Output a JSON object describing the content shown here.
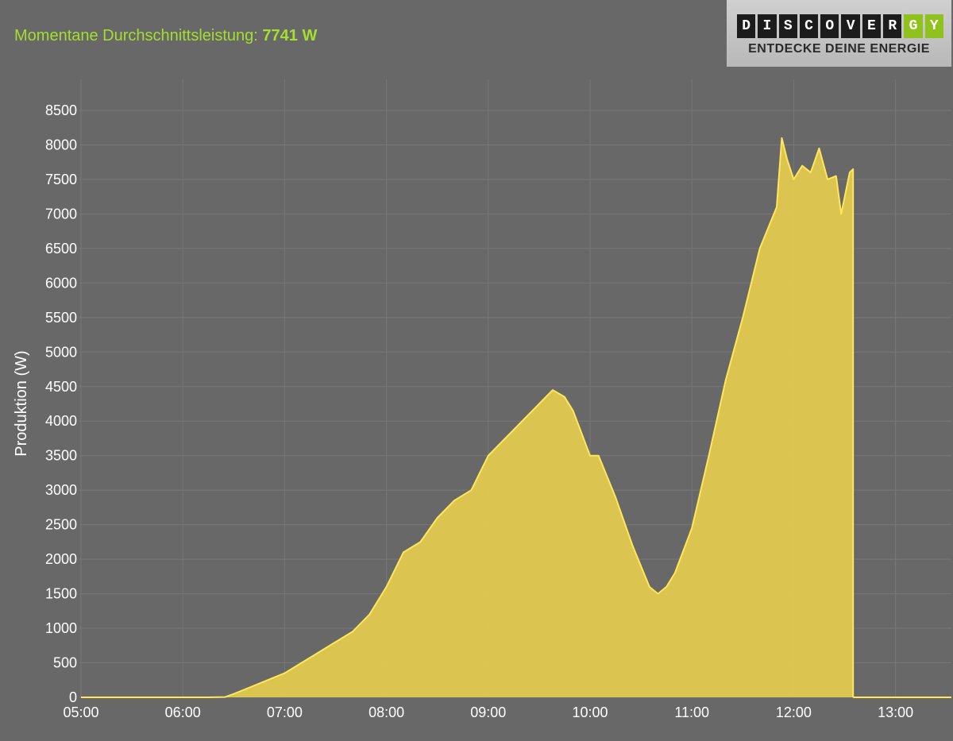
{
  "header": {
    "label": "Momentane Durchschnittsleistung:",
    "value": "7741 W"
  },
  "logo": {
    "letters": [
      "D",
      "I",
      "S",
      "C",
      "O",
      "V",
      "E",
      "R",
      "G",
      "Y"
    ],
    "tagline": "ENTDECKE DEINE ENERGIE",
    "accent_color": "#8fc21d"
  },
  "colors": {
    "background": "#686868",
    "area_fill": "#e2c94f",
    "area_line": "#ffe75a",
    "grid": "#777777",
    "headline": "#a4de2e"
  },
  "chart_data": {
    "type": "area",
    "ylabel": "Produktion (W)",
    "xlabel": "",
    "x_ticks": [
      "05:00",
      "06:00",
      "07:00",
      "08:00",
      "09:00",
      "10:00",
      "11:00",
      "12:00",
      "13:00"
    ],
    "y_ticks": [
      0,
      500,
      1000,
      1500,
      2000,
      2500,
      3000,
      3500,
      4000,
      4500,
      5000,
      5500,
      6000,
      6500,
      7000,
      7500,
      8000,
      8500
    ],
    "ylim": [
      0,
      8500
    ],
    "grid": true,
    "series": [
      {
        "x": [
          "05:00",
          "06:00",
          "06:15",
          "06:25",
          "06:30",
          "06:40",
          "06:50",
          "07:00",
          "07:10",
          "07:20",
          "07:30",
          "07:40",
          "07:50",
          "08:00",
          "08:10",
          "08:20",
          "08:30",
          "08:40",
          "08:50",
          "09:00",
          "09:10",
          "09:20",
          "09:30",
          "09:38",
          "09:45",
          "09:50",
          "10:00",
          "10:05",
          "10:15",
          "10:25",
          "10:35",
          "10:40",
          "10:45",
          "10:50",
          "11:00",
          "11:10",
          "11:20",
          "11:30",
          "11:40",
          "11:50",
          "11:53",
          "11:56",
          "12:00",
          "12:05",
          "12:10",
          "12:15",
          "12:20",
          "12:25",
          "12:28",
          "12:33",
          "12:35"
        ],
        "values": [
          0,
          0,
          0,
          5,
          50,
          150,
          250,
          350,
          500,
          650,
          800,
          950,
          1200,
          1600,
          2100,
          2250,
          2600,
          2850,
          3000,
          3500,
          3750,
          4000,
          4250,
          4450,
          4350,
          4150,
          3500,
          3500,
          2900,
          2200,
          1600,
          1500,
          1600,
          1800,
          2450,
          3500,
          4600,
          5500,
          6500,
          7100,
          8100,
          7800,
          7500,
          7700,
          7600,
          7950,
          7500,
          7550,
          7000,
          7600,
          7650
        ]
      }
    ]
  }
}
